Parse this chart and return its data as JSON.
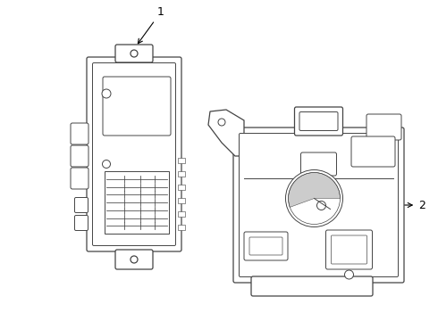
{
  "background_color": "#ffffff",
  "line_color": "#444444",
  "label_color": "#000000",
  "label1": "1",
  "label2": "2",
  "figsize": [
    4.9,
    3.6
  ],
  "dpi": 100
}
